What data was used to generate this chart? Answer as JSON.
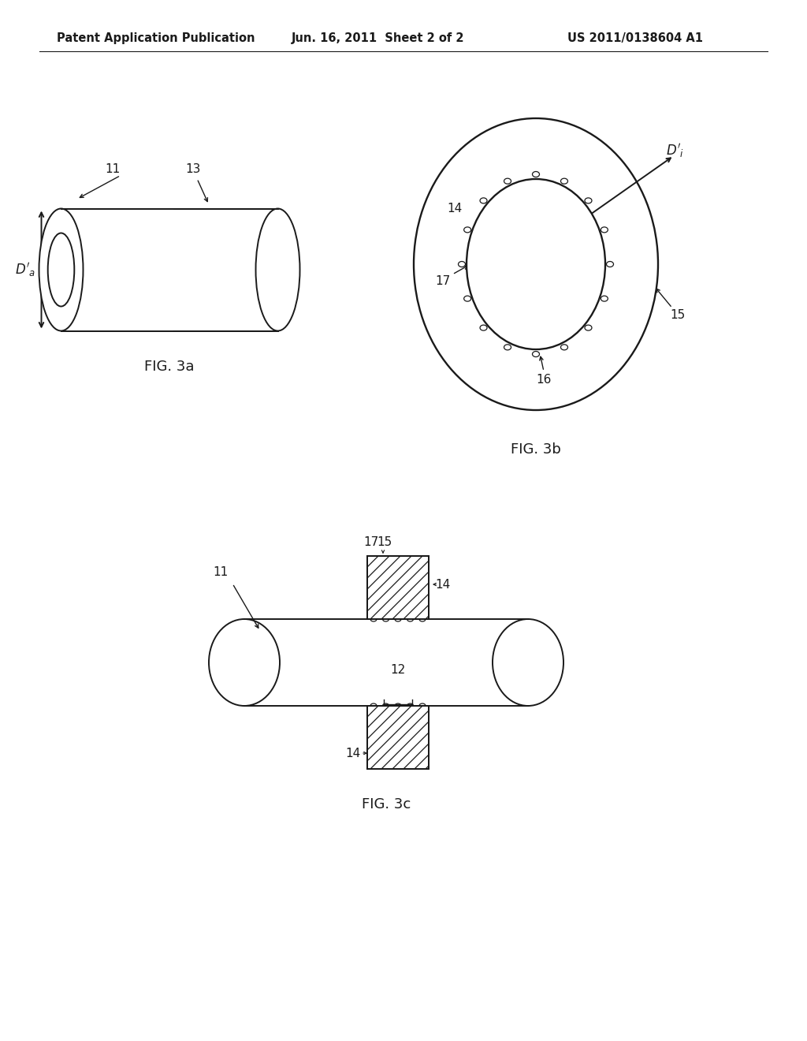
{
  "bg_color": "#ffffff",
  "header_left": "Patent Application Publication",
  "header_center": "Jun. 16, 2011  Sheet 2 of 2",
  "header_right": "US 2011/0138604 A1",
  "fig3a_label": "FIG. 3a",
  "fig3b_label": "FIG. 3b",
  "fig3c_label": "FIG. 3c",
  "line_color": "#1a1a1a",
  "font_size_header": 10.5,
  "font_size_label": 13,
  "font_size_ref": 11
}
